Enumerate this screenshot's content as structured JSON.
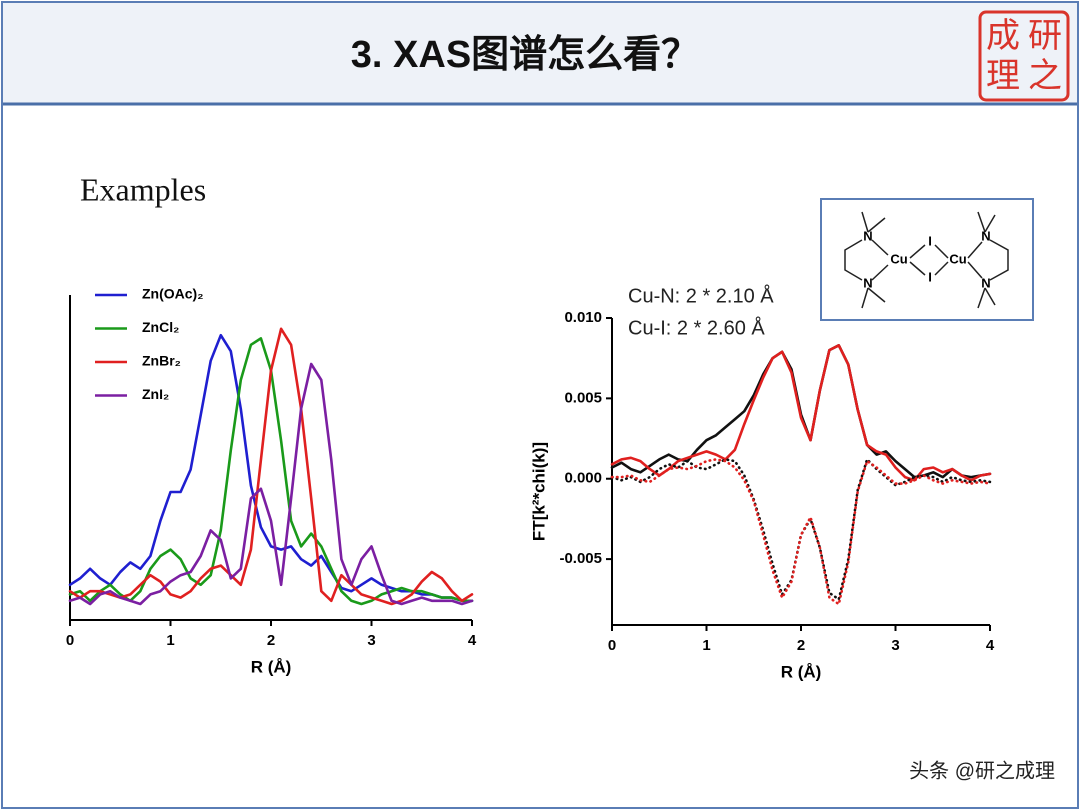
{
  "header": {
    "title": "3. XAS图谱怎么看？",
    "logo": [
      "研",
      "之",
      "成",
      "理"
    ]
  },
  "section": "Examples",
  "footer": "头条 @研之成理",
  "structure": {
    "labels": [
      "N",
      "N",
      "Cu",
      "I",
      "I",
      "Cu",
      "N",
      "N"
    ]
  },
  "chart_data": [
    {
      "type": "line",
      "xlabel": "R (Å)",
      "x": [
        0,
        0.1,
        0.2,
        0.3,
        0.4,
        0.5,
        0.6,
        0.7,
        0.8,
        0.9,
        1,
        1.1,
        1.2,
        1.3,
        1.4,
        1.5,
        1.6,
        1.7,
        1.8,
        1.9,
        2,
        2.1,
        2.2,
        2.3,
        2.4,
        2.5,
        2.6,
        2.7,
        2.8,
        2.9,
        3,
        3.1,
        3.2,
        3.3,
        3.4,
        3.5,
        3.6,
        3.7,
        3.8,
        3.9,
        4
      ],
      "xlim": [
        0,
        4
      ],
      "xticks": [
        0,
        1,
        2,
        3,
        4
      ],
      "ylim": [
        0,
        1
      ],
      "series": [
        {
          "name": "Zn(OAc)₂",
          "color": "#1f1fd0",
          "values": [
            0.11,
            0.13,
            0.16,
            0.13,
            0.11,
            0.15,
            0.18,
            0.16,
            0.2,
            0.31,
            0.4,
            0.4,
            0.47,
            0.64,
            0.81,
            0.89,
            0.84,
            0.66,
            0.42,
            0.29,
            0.23,
            0.22,
            0.23,
            0.19,
            0.17,
            0.2,
            0.15,
            0.1,
            0.09,
            0.11,
            0.13,
            0.11,
            0.1,
            0.09,
            0.09,
            0.08,
            0.08,
            0.07,
            0.07,
            0.06,
            0.06
          ]
        },
        {
          "name": "ZnCl₂",
          "color": "#1a9a1a",
          "values": [
            0.08,
            0.09,
            0.06,
            0.09,
            0.11,
            0.08,
            0.06,
            0.09,
            0.16,
            0.2,
            0.22,
            0.19,
            0.13,
            0.11,
            0.14,
            0.28,
            0.53,
            0.75,
            0.86,
            0.88,
            0.78,
            0.56,
            0.31,
            0.23,
            0.27,
            0.23,
            0.16,
            0.09,
            0.06,
            0.05,
            0.06,
            0.08,
            0.09,
            0.1,
            0.09,
            0.09,
            0.08,
            0.07,
            0.07,
            0.06,
            0.06
          ]
        },
        {
          "name": "ZnBr₂",
          "color": "#e02020",
          "values": [
            0.09,
            0.07,
            0.09,
            0.09,
            0.08,
            0.07,
            0.08,
            0.11,
            0.14,
            0.12,
            0.08,
            0.07,
            0.09,
            0.13,
            0.16,
            0.17,
            0.14,
            0.11,
            0.22,
            0.5,
            0.78,
            0.91,
            0.86,
            0.66,
            0.38,
            0.09,
            0.06,
            0.14,
            0.11,
            0.08,
            0.07,
            0.06,
            0.05,
            0.06,
            0.08,
            0.12,
            0.15,
            0.13,
            0.09,
            0.06,
            0.08
          ]
        },
        {
          "name": "ZnI₂",
          "color": "#7b1fa2",
          "values": [
            0.06,
            0.07,
            0.05,
            0.08,
            0.09,
            0.07,
            0.06,
            0.05,
            0.08,
            0.09,
            0.12,
            0.14,
            0.15,
            0.2,
            0.28,
            0.25,
            0.13,
            0.16,
            0.38,
            0.41,
            0.31,
            0.11,
            0.38,
            0.66,
            0.8,
            0.75,
            0.5,
            0.19,
            0.11,
            0.19,
            0.23,
            0.14,
            0.06,
            0.05,
            0.06,
            0.07,
            0.06,
            0.06,
            0.06,
            0.05,
            0.06
          ]
        }
      ]
    },
    {
      "type": "line",
      "xlabel": "R (Å)",
      "ylabel": "FT[k²*chi(k)]",
      "annotations": [
        "Cu-N: 2 * 2.10 Å",
        "Cu-I:   2 * 2.60 Å"
      ],
      "x": [
        0,
        0.1,
        0.2,
        0.3,
        0.4,
        0.5,
        0.6,
        0.7,
        0.8,
        0.9,
        1,
        1.1,
        1.2,
        1.3,
        1.4,
        1.5,
        1.6,
        1.7,
        1.8,
        1.9,
        2,
        2.1,
        2.2,
        2.3,
        2.4,
        2.5,
        2.6,
        2.7,
        2.8,
        2.9,
        3,
        3.1,
        3.2,
        3.3,
        3.4,
        3.5,
        3.6,
        3.7,
        3.8,
        3.9,
        4
      ],
      "xlim": [
        0,
        4
      ],
      "xticks": [
        0,
        1,
        2,
        3,
        4
      ],
      "ylim": [
        -0.0091,
        0.01
      ],
      "yticks": [
        -0.005,
        {
          "value": 0,
          "label": "0.000"
        },
        0.005,
        {
          "value": 0.01,
          "label": "0.010"
        }
      ],
      "series": [
        {
          "color": "#111111",
          "dash": "solid",
          "values": [
            0.0007,
            0.001,
            0.0006,
            0.0004,
            0.0008,
            0.0012,
            0.0015,
            0.0012,
            0.0011,
            0.0018,
            0.0024,
            0.0027,
            0.0032,
            0.0037,
            0.0042,
            0.0052,
            0.0065,
            0.0075,
            0.0079,
            0.0068,
            0.004,
            0.0024,
            0.0055,
            0.008,
            0.0083,
            0.0071,
            0.0043,
            0.0021,
            0.0015,
            0.0017,
            0.0011,
            0.0006,
            0.0001,
            0.0002,
            0.0004,
            0.0001,
            0.0006,
            0.0002,
            0.0001,
            0.0002,
            0.0003
          ]
        },
        {
          "color": "#e0201f",
          "dash": "solid",
          "values": [
            0.0009,
            0.0012,
            0.0013,
            0.0011,
            0.0006,
            0.0002,
            0.0006,
            0.0011,
            0.0013,
            0.0015,
            0.0017,
            0.0015,
            0.0012,
            0.0018,
            0.0034,
            0.0049,
            0.0063,
            0.0075,
            0.0079,
            0.0066,
            0.0038,
            0.0024,
            0.0055,
            0.008,
            0.0083,
            0.0071,
            0.0043,
            0.0021,
            0.0017,
            0.0015,
            0.0007,
            0.0001,
            -0.0001,
            0.0006,
            0.0007,
            0.0004,
            0.0006,
            0.0002,
            -0.0001,
            0.0002,
            0.0003
          ]
        },
        {
          "color": "#111111",
          "dash": "dotted",
          "values": [
            0.0001,
            -0.0001,
            0.0001,
            -0.0002,
            0.0001,
            0.0006,
            0.0009,
            0.0007,
            0.0011,
            0.0007,
            0.0006,
            0.0009,
            0.0012,
            0.0011,
            0.0002,
            -0.0013,
            -0.0032,
            -0.0053,
            -0.0072,
            -0.0063,
            -0.0035,
            -0.0025,
            -0.0043,
            -0.0071,
            -0.0075,
            -0.005,
            -0.0007,
            0.0012,
            0.0006,
            0.0001,
            -0.0004,
            -0.0002,
            0.0001,
            0.0002,
            0.0001,
            -0.0002,
            0.0001,
            -0.0001,
            -0.0002,
            -0.0001,
            -0.0002
          ]
        },
        {
          "color": "#e0201f",
          "dash": "dotted",
          "values": [
            0.0001,
            0.0001,
            0.0002,
            -0.0001,
            -0.0002,
            0.0002,
            0.0006,
            0.0007,
            0.0006,
            0.0008,
            0.0011,
            0.0012,
            0.0011,
            0.0007,
            -0.0001,
            -0.0014,
            -0.0035,
            -0.0057,
            -0.0074,
            -0.0064,
            -0.0035,
            -0.0024,
            -0.0043,
            -0.0074,
            -0.0078,
            -0.0052,
            -0.0008,
            0.0011,
            0.0007,
            0.0002,
            -0.0003,
            -0.0003,
            -0.0001,
            0.0002,
            -0.0001,
            -0.0003,
            -0.0001,
            -0.0002,
            -0.0003,
            -0.0002,
            -0.0003
          ]
        }
      ]
    }
  ]
}
